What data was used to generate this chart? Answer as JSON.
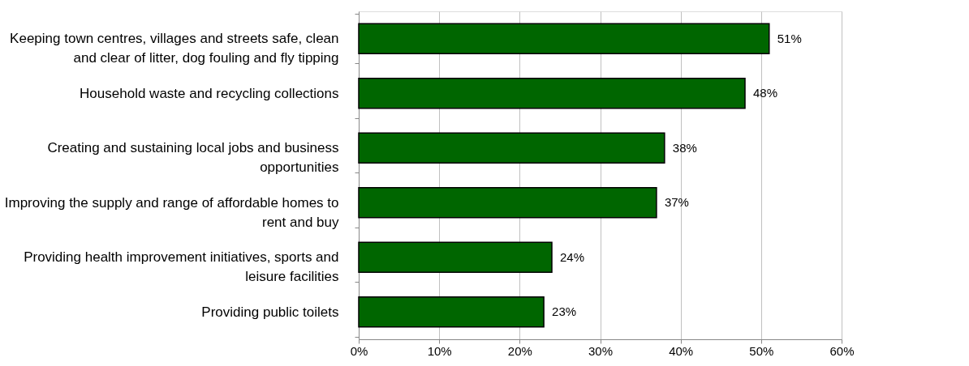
{
  "chart_data": {
    "type": "bar",
    "orientation": "horizontal",
    "categories": [
      "Keeping town centres, villages and streets safe, clean and clear of litter, dog fouling and fly tipping",
      "Household waste and recycling collections",
      "Creating and sustaining local jobs and business opportunities",
      "Improving the supply and range of affordable homes to rent and buy",
      "Providing health improvement initiatives, sports and leisure facilities",
      "Providing public toilets"
    ],
    "values": [
      51,
      48,
      38,
      37,
      24,
      23
    ],
    "value_labels": [
      "51%",
      "48%",
      "38%",
      "37%",
      "24%",
      "23%"
    ],
    "color": "#006600",
    "xlim": [
      0,
      60
    ],
    "xticks": [
      {
        "value": 0,
        "label": "0%"
      },
      {
        "value": 10,
        "label": "10%"
      },
      {
        "value": 20,
        "label": "20%"
      },
      {
        "value": 30,
        "label": "30%"
      },
      {
        "value": 40,
        "label": "40%"
      },
      {
        "value": 50,
        "label": "50%"
      },
      {
        "value": 60,
        "label": "60%"
      }
    ],
    "grid": "x"
  }
}
